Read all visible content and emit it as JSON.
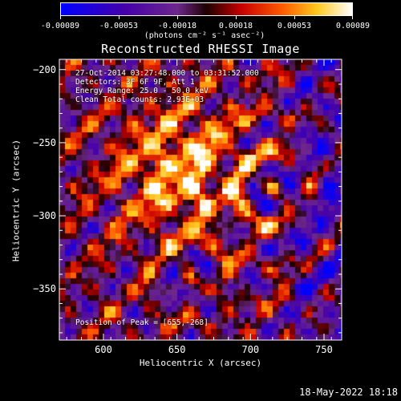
{
  "colorbar": {
    "ticks": [
      "-0.00089",
      "-0.00053",
      "-0.00018",
      "0.00018",
      "0.00053",
      "0.00089"
    ],
    "units": "(photons cm⁻² s⁻¹ asec⁻²)"
  },
  "title": "Reconstructed RHESSI Image",
  "info": {
    "line1": "27-Oct-2014 03:27:48.000 to 03:31:52.000",
    "line2": "Detectors: 3F 6F 9F, Att 1",
    "line3": "Energy Range: 25.0 - 50.0 keV",
    "line4": "Clean    Total counts: 2.93E+03"
  },
  "peak_text": "Position of Peak = [655,-268]",
  "axes": {
    "xlabel": "Heliocentric X (arcsec)",
    "ylabel": "Heliocentric Y (arcsec)",
    "xticks": [
      "600",
      "650",
      "700",
      "750"
    ],
    "yticks": [
      "-200",
      "-250",
      "-300",
      "-350"
    ],
    "xlim": [
      570,
      762
    ],
    "ylim": [
      -385,
      -193
    ]
  },
  "datestamp": "18-May-2022 18:18",
  "colors": {
    "background": "#000000",
    "axis": "#ffffff"
  }
}
